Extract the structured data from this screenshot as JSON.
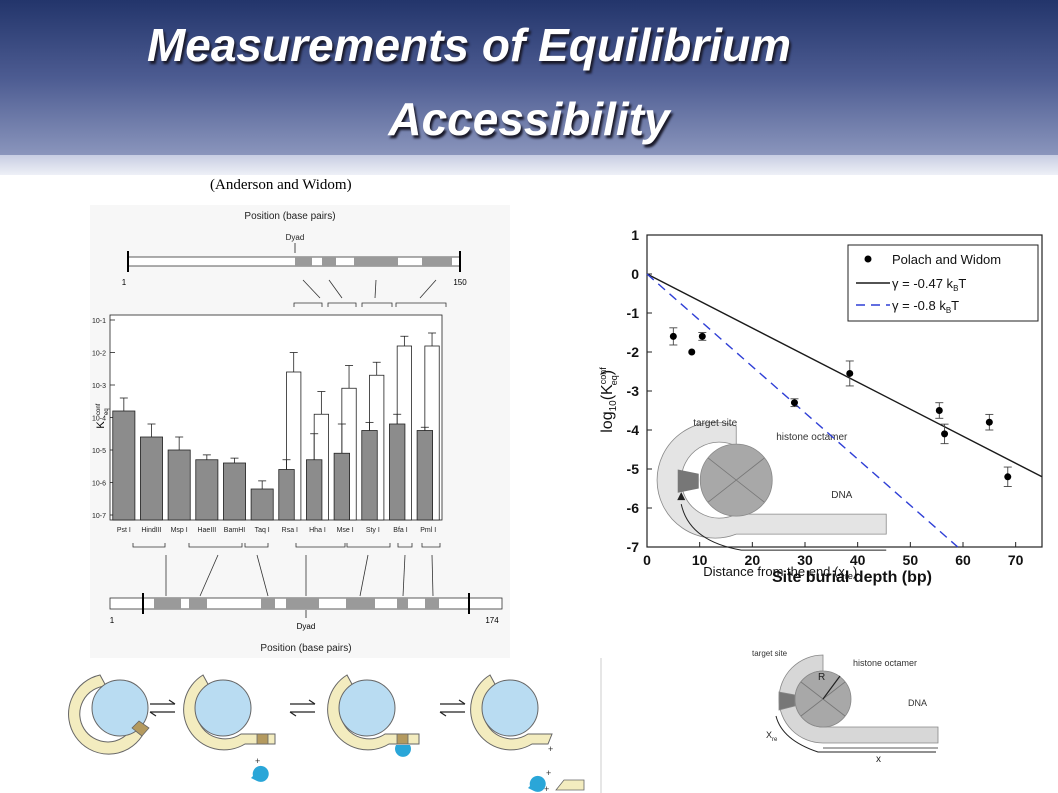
{
  "slide": {
    "title_line1": "Measurements of Equilibrium",
    "title_line2": "Accessibility",
    "citation": "(Anderson and Widom)"
  },
  "left_panel": {
    "top_axis_title": "Position (base pairs)",
    "top_dyad": "Dyad",
    "top_start": "1",
    "top_end": "150",
    "bottom_axis_title": "Position (base pairs)",
    "bottom_dyad": "Dyad",
    "bottom_start": "1",
    "bottom_end": "174",
    "ylabel": "K",
    "ylabel_sup": "conf",
    "ylabel_sub": "eq"
  },
  "right_panel": {
    "inset_labels": {
      "target_site": "target site",
      "histone_octamer": "histone octamer",
      "dna": "DNA",
      "distance": "Distance from the end (x",
      "distance_sub": "re",
      "distance_close": ")"
    }
  },
  "bottom_right_diagram": {
    "target_site": "target site",
    "histone_octamer": "histone octamer",
    "dna": "DNA",
    "r_label": "R",
    "xre_label": "X",
    "xre_sub": "re",
    "x_label": "x"
  },
  "bottom_left_diagram": {
    "plus_signs": [
      "+",
      "+",
      "+",
      "+"
    ]
  },
  "colors": {
    "header_dark": "#23356b",
    "bar_fill": "#8c8c8c",
    "widom_line": "#1a1a1a",
    "dashed_line": "#2f3fd6",
    "cyan": "#2aa6d8",
    "octamer_blue": "#b9dcf2",
    "dna_cream": "#f3ecbf"
  },
  "chart_data": [
    {
      "type": "bar",
      "categories": [
        "Pst I",
        "HindIII",
        "Msp I",
        "HaeIII",
        "BamHI",
        "Taq I",
        "Rsa I",
        "Hha I",
        "Mse I",
        "Sty I",
        "Bfa I",
        "Pml I"
      ],
      "yscale": "log",
      "ylim": [
        1e-07,
        0.1
      ],
      "yticks": [
        "10-1",
        "10-2",
        "10-3",
        "10-4",
        "10-5",
        "10-6",
        "10-7"
      ],
      "ytick_exponents": [
        -1,
        -2,
        -3,
        -4,
        -5,
        -6,
        -7
      ],
      "series": [
        {
          "fill": "gray",
          "log10_values": [
            -3.8,
            -4.6,
            -5.0,
            -5.3,
            -5.4,
            -6.2,
            -5.6,
            -5.3,
            -5.1,
            -4.4,
            -4.2,
            -4.4
          ],
          "log10_err_top": [
            -3.4,
            -4.2,
            -4.6,
            -5.15,
            -5.25,
            -5.95,
            -5.3,
            -4.5,
            -4.2,
            -4.15,
            -3.9,
            -4.3
          ]
        },
        {
          "fill": "white",
          "log10_values": [
            null,
            null,
            null,
            null,
            null,
            null,
            -2.6,
            -3.9,
            -3.1,
            -2.7,
            -1.8,
            -1.8
          ],
          "log10_err_top": [
            null,
            null,
            null,
            null,
            null,
            null,
            -2.0,
            -3.2,
            -2.4,
            -2.3,
            -1.5,
            -1.4
          ]
        }
      ]
    },
    {
      "type": "scatter",
      "xlabel": "Site burial depth (bp)",
      "ylabel": "log10(Keq conf)",
      "ylabel_parts": {
        "pre": "log",
        "sub10": "10",
        "mid": "(K",
        "sup": "conf",
        "sub": "eq",
        "close": ")"
      },
      "xlim": [
        0,
        75
      ],
      "ylim": [
        -7,
        1
      ],
      "xticks": [
        0,
        10,
        20,
        30,
        40,
        50,
        60,
        70
      ],
      "yticks": [
        1,
        0,
        -1,
        -2,
        -3,
        -4,
        -5,
        -6,
        -7
      ],
      "legend_position": "top-right",
      "series": [
        {
          "name": "Polach and Widom",
          "x": [
            5,
            8.5,
            10.5,
            28,
            38.5,
            55.5,
            56.5,
            65,
            68.5
          ],
          "y": [
            -1.6,
            -2.0,
            -1.6,
            -3.3,
            -2.55,
            -3.5,
            -4.1,
            -3.8,
            -5.2
          ],
          "err": [
            0.22,
            0,
            0.1,
            0.1,
            0.32,
            0.2,
            0.25,
            0.2,
            0.25
          ]
        }
      ],
      "lines": [
        {
          "name": "γ = -0.47 k_BT",
          "legend_pre": "γ = -0.47 k",
          "legend_sub": "B",
          "legend_post": "T",
          "style": "solid",
          "x": [
            0,
            75
          ],
          "y": [
            0,
            -5.2
          ]
        },
        {
          "name": "γ = -0.8 k_BT",
          "legend_pre": "γ = -0.8 k",
          "legend_sub": "B",
          "legend_post": "T",
          "style": "dashed",
          "x": [
            0,
            59
          ],
          "y": [
            0,
            -7
          ]
        }
      ]
    }
  ]
}
